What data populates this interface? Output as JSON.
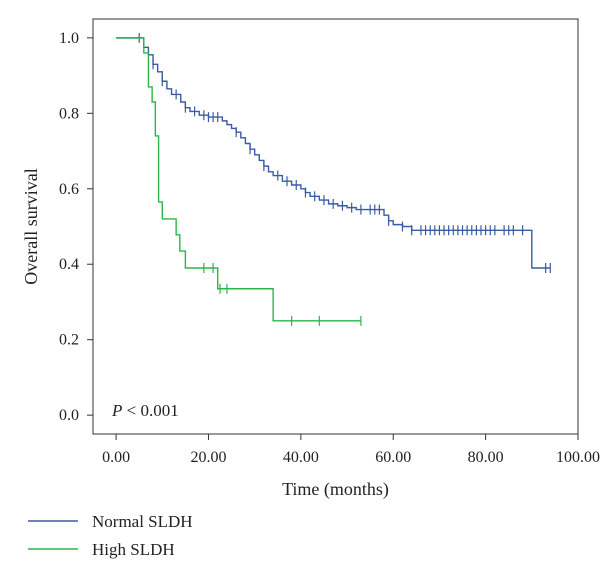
{
  "chart_data": {
    "type": "line",
    "subtype": "kaplan-meier-step",
    "title": "",
    "xlabel": "Time (months)",
    "ylabel": "Overall survival",
    "xlim": [
      -5,
      100
    ],
    "ylim": [
      -0.05,
      1.05
    ],
    "x_ticks": [
      0,
      20,
      40,
      60,
      80,
      100
    ],
    "x_tick_labels": [
      "0.00",
      "20.00",
      "40.00",
      "60.00",
      "80.00",
      "100.00"
    ],
    "y_ticks": [
      0.0,
      0.2,
      0.4,
      0.6,
      0.8,
      1.0
    ],
    "y_tick_labels": [
      "0.0",
      "0.2",
      "0.4",
      "0.6",
      "0.8",
      "1.0"
    ],
    "grid": false,
    "annotation": {
      "p_label": "P",
      "p_rest": " < 0.001"
    },
    "legend": {
      "placement": "below-left"
    },
    "series": [
      {
        "name": "Normal SLDH",
        "color": "#3b5ba5",
        "steps": [
          [
            0,
            1.0
          ],
          [
            6,
            0.975
          ],
          [
            7,
            0.955
          ],
          [
            8,
            0.93
          ],
          [
            9,
            0.91
          ],
          [
            10,
            0.885
          ],
          [
            11,
            0.865
          ],
          [
            12,
            0.85
          ],
          [
            14,
            0.83
          ],
          [
            15,
            0.815
          ],
          [
            16,
            0.805
          ],
          [
            18,
            0.795
          ],
          [
            20,
            0.79
          ],
          [
            23,
            0.78
          ],
          [
            24,
            0.77
          ],
          [
            25,
            0.76
          ],
          [
            26,
            0.75
          ],
          [
            27,
            0.735
          ],
          [
            28,
            0.72
          ],
          [
            29,
            0.705
          ],
          [
            30,
            0.69
          ],
          [
            31,
            0.675
          ],
          [
            32,
            0.66
          ],
          [
            33,
            0.645
          ],
          [
            34,
            0.635
          ],
          [
            36,
            0.62
          ],
          [
            38,
            0.61
          ],
          [
            40,
            0.6
          ],
          [
            41,
            0.59
          ],
          [
            42,
            0.58
          ],
          [
            44,
            0.57
          ],
          [
            46,
            0.56
          ],
          [
            48,
            0.555
          ],
          [
            50,
            0.55
          ],
          [
            52,
            0.545
          ],
          [
            58,
            0.53
          ],
          [
            59,
            0.515
          ],
          [
            60,
            0.505
          ],
          [
            62,
            0.5
          ],
          [
            64,
            0.49
          ],
          [
            90,
            0.39
          ],
          [
            94,
            0.39
          ]
        ],
        "censor_x": [
          5,
          8,
          10,
          13,
          15,
          17,
          19,
          20,
          21,
          22,
          26,
          29,
          32,
          35,
          37,
          39,
          41,
          43,
          45,
          47,
          49,
          51,
          53,
          55,
          56,
          57,
          59,
          62,
          64,
          66,
          67,
          68,
          69,
          70,
          71,
          72,
          73,
          74,
          75,
          76,
          77,
          78,
          79,
          80,
          81,
          82,
          84,
          85,
          86,
          88,
          93,
          94
        ]
      },
      {
        "name": "High SLDH",
        "color": "#2db54a",
        "steps": [
          [
            0,
            1.0
          ],
          [
            6,
            0.96
          ],
          [
            7,
            0.87
          ],
          [
            7.8,
            0.83
          ],
          [
            8.5,
            0.74
          ],
          [
            9.2,
            0.565
          ],
          [
            10,
            0.52
          ],
          [
            13,
            0.478
          ],
          [
            13.8,
            0.435
          ],
          [
            15,
            0.39
          ],
          [
            22,
            0.335
          ],
          [
            34,
            0.25
          ],
          [
            53,
            0.25
          ]
        ],
        "censor_x": [
          19,
          21,
          22.5,
          24,
          38,
          44,
          53
        ]
      }
    ]
  }
}
